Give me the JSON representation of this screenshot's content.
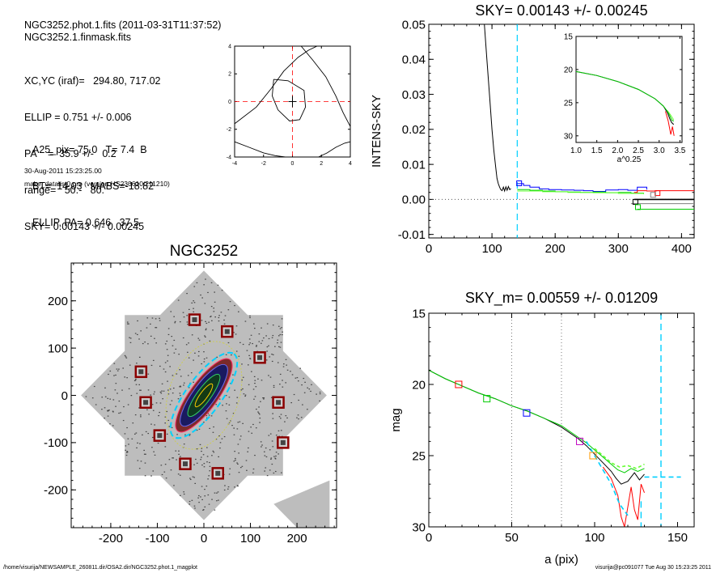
{
  "header": {
    "lines_a": [
      "NGC3252.phot.1.fits  (2011-03-31T11:37:52)",
      "NGC3252.1.finmask.fits"
    ],
    "lines_b": [
      "XC,YC (iraf)=   294.80, 717.02",
      "ELLIP = 0.751 +/- 0.006",
      "PA    =  35.9 +/-   0.2",
      "range=   50.-   80.",
      "SKY= 0.00143 +/- 0.00245"
    ],
    "lines_c": [
      "A25_pix= 75.0   T= 7.4  B",
      "BT=  14.03   MABS=-18.82",
      "ELLIP, PA= 0.646   37.5"
    ],
    "date": "30-Aug-2011 15:23:25.00",
    "program": "make_datalist0.pro (version HS230610/211210)"
  },
  "footer": {
    "path": "/home/visurija/NEWSAMPLE_260811.dir/OSA2.dir/NGC3252.phot.1_magplot",
    "user": "visurija@pc091077  Tue Aug 30 15:23:25 2011"
  },
  "colors": {
    "black": "#000000",
    "red": "#ff0000",
    "green": "#00cc00",
    "blue": "#0000ff",
    "cyan": "#00d0ff",
    "magenta": "#c000c0",
    "orange": "#ff9900",
    "lime": "#66ff33",
    "gray": "#808080",
    "darkred": "#800000"
  },
  "chart_data": [
    {
      "id": "centre-contour",
      "type": "line",
      "title": "",
      "xlim": [
        -4,
        4
      ],
      "ylim": [
        -4,
        4
      ],
      "xticks": [
        "-4",
        "-2",
        "0",
        "2",
        "4"
      ],
      "yticks": [
        "-4",
        "-2",
        "0",
        "2",
        "4"
      ],
      "series": [
        {
          "x": [
            -1.3,
            -0.3,
            0.8,
            0.9,
            0.5,
            -0.2,
            -1.0,
            -1.4,
            -1.3
          ],
          "y": [
            1.6,
            1.5,
            0.8,
            -0.4,
            -1.3,
            -1.4,
            -0.6,
            0.4,
            1.6
          ]
        },
        {
          "x": [
            -4.0,
            -2.5,
            -1.5,
            -0.6,
            0.4,
            1.1,
            1.7,
            2.0
          ],
          "y": [
            -1.6,
            -0.4,
            0.9,
            2.2,
            3.2,
            3.7,
            4.0,
            4.0
          ]
        },
        {
          "x": [
            0.6,
            1.4,
            2.3,
            3.0,
            3.5,
            4.0
          ],
          "y": [
            4.0,
            3.0,
            1.8,
            0.4,
            -0.8,
            -1.8
          ]
        },
        {
          "x": [
            -4.0,
            -3.0,
            -2.0,
            -1.2,
            -0.5
          ],
          "y": [
            -2.9,
            -3.3,
            -3.7,
            -3.9,
            -4.0
          ]
        },
        {
          "x": [
            1.8,
            2.4,
            3.0,
            3.6,
            4.0
          ],
          "y": [
            -4.0,
            -3.7,
            -3.3,
            -3.0,
            -2.9
          ]
        }
      ]
    },
    {
      "id": "sky-profile",
      "type": "line",
      "title": "SKY= 0.00143 +/- 0.00245",
      "xlabel": "",
      "ylabel": "INTENS-SKY",
      "xlim": [
        0,
        420
      ],
      "ylim": [
        -0.011,
        0.05
      ],
      "xticks": [
        "0",
        "100",
        "200",
        "300",
        "400"
      ],
      "yticks": [
        "-0.01",
        "0.00",
        "0.01",
        "0.02",
        "0.03",
        "0.04",
        "0.05"
      ],
      "series": [
        {
          "color": "black",
          "x": [
            88,
            92,
            96,
            100,
            103,
            106,
            108,
            110,
            112,
            114,
            116,
            118,
            120,
            122,
            124,
            126,
            128,
            130
          ],
          "y": [
            0.05,
            0.04,
            0.03,
            0.02,
            0.014,
            0.009,
            0.006,
            0.0045,
            0.0035,
            0.0028,
            0.0025,
            0.0035,
            0.0024,
            0.0036,
            0.0026,
            0.0037,
            0.0028,
            0.0031
          ]
        },
        {
          "color": "blue",
          "x": [
            140,
            150,
            160,
            175,
            190,
            210,
            230,
            245,
            260,
            280,
            300,
            315,
            330,
            345
          ],
          "y": [
            0.0045,
            0.004,
            0.0035,
            0.003,
            0.0028,
            0.0027,
            0.0026,
            0.0025,
            0.0023,
            0.0027,
            0.0028,
            0.0026,
            0.0035,
            0.0028
          ]
        },
        {
          "color": "green",
          "x": [
            140,
            160,
            180,
            200,
            220,
            240,
            260,
            280,
            300,
            320,
            340
          ],
          "y": [
            0.0028,
            0.0026,
            0.0024,
            0.0022,
            0.0021,
            0.002,
            0.0021,
            0.0019,
            0.002,
            0.0018,
            0.0017
          ]
        },
        {
          "color": "lime",
          "x": [
            140,
            180,
            220,
            260,
            300,
            340
          ],
          "y": [
            0.0024,
            0.0022,
            0.002,
            0.0019,
            0.0017,
            0.0015
          ]
        },
        {
          "color": "red",
          "x": [
            325,
            330,
            345,
            360,
            380,
            420
          ],
          "y": [
            0.002,
            0.0025,
            0.0024,
            0.0025,
            0.0025,
            0.0025
          ]
        },
        {
          "color": "black",
          "x": [
            325,
            420
          ],
          "y": [
            0.0,
            0.0
          ]
        },
        {
          "color": "green",
          "x": [
            330,
            420
          ],
          "y": [
            -0.0028,
            -0.0028
          ]
        },
        {
          "color": "gray",
          "x": [
            320,
            420
          ],
          "y": [
            -0.0012,
            -0.0012
          ]
        }
      ],
      "markers": [
        {
          "color": "blue",
          "x": [
            143
          ],
          "y": [
            0.0046
          ]
        },
        {
          "color": "red",
          "x": [
            362
          ],
          "y": [
            0.0018
          ]
        },
        {
          "color": "gray",
          "x": [
            355
          ],
          "y": [
            0.0013
          ]
        },
        {
          "color": "black",
          "x": [
            327
          ],
          "y": [
            -0.0007
          ]
        },
        {
          "color": "green",
          "x": [
            331
          ],
          "y": [
            -0.0022
          ]
        }
      ],
      "vlines": [
        {
          "color": "cyan",
          "x": 140
        }
      ],
      "hlines": [
        {
          "color": "gray",
          "y": 0
        }
      ]
    },
    {
      "id": "sky-inset",
      "type": "line",
      "title": "",
      "xlabel": "a^0.25",
      "xlim": [
        1.0,
        3.55
      ],
      "ylim": [
        31,
        15
      ],
      "xticks": [
        "1.0",
        "1.5",
        "2.0",
        "2.5",
        "3.0",
        "3.5"
      ],
      "yticks": [
        "15",
        "20",
        "25",
        "30"
      ],
      "series": [
        {
          "color": "black",
          "x": [
            1.0,
            1.5,
            2.0,
            2.5,
            2.9,
            3.1,
            3.2,
            3.26,
            3.3,
            3.35
          ],
          "y": [
            20.3,
            20.9,
            21.8,
            23.0,
            24.4,
            25.5,
            26.5,
            27.5,
            28.0,
            28.3
          ]
        },
        {
          "color": "green",
          "x": [
            1.0,
            1.5,
            2.0,
            2.5,
            2.9,
            3.1,
            3.2,
            3.26,
            3.3,
            3.35
          ],
          "y": [
            20.3,
            20.9,
            21.8,
            23.0,
            24.4,
            25.5,
            26.3,
            27.0,
            27.6,
            27.8
          ]
        },
        {
          "color": "red",
          "x": [
            3.15,
            3.22,
            3.28,
            3.32,
            3.36
          ],
          "y": [
            26.3,
            27.8,
            29.8,
            28.6,
            30.0
          ]
        },
        {
          "color": "lime",
          "x": [
            3.2,
            3.28,
            3.35
          ],
          "y": [
            26.2,
            26.9,
            27.6
          ]
        }
      ]
    },
    {
      "id": "galaxy-image",
      "type": "scatter",
      "title": "NGC3252",
      "xlim": [
        -285,
        285
      ],
      "ylim": [
        -280,
        280
      ],
      "xticks": [
        "-200",
        "-100",
        "0",
        "100",
        "200"
      ],
      "yticks": [
        "-200",
        "-100",
        "0",
        "100",
        "200"
      ],
      "masks": [
        [
          -20,
          160
        ],
        [
          50,
          135
        ],
        [
          120,
          80
        ],
        [
          -135,
          50
        ],
        [
          -125,
          -15
        ],
        [
          160,
          -15
        ],
        [
          -95,
          -85
        ],
        [
          170,
          -100
        ],
        [
          -40,
          -145
        ],
        [
          30,
          -165
        ]
      ]
    },
    {
      "id": "mag-profile",
      "type": "line",
      "title": "SKY_m=  0.00559 +/- 0.01209",
      "xlabel": "a (pix)",
      "ylabel": "mag",
      "xlim": [
        0,
        160
      ],
      "ylim": [
        30,
        15
      ],
      "xticks": [
        "0",
        "50",
        "100",
        "150"
      ],
      "yticks": [
        "15",
        "20",
        "25",
        "30"
      ],
      "series": [
        {
          "color": "black",
          "x": [
            0,
            10,
            20,
            30,
            40,
            50,
            60,
            70,
            80,
            90,
            95,
            100,
            105,
            110,
            113,
            116,
            120,
            124,
            127,
            130
          ],
          "y": [
            19.0,
            19.6,
            20.1,
            20.6,
            21.0,
            21.5,
            21.9,
            22.4,
            23.0,
            23.8,
            24.3,
            24.9,
            25.5,
            26.1,
            26.6,
            27.0,
            26.8,
            26.2,
            26.7,
            26.3
          ]
        },
        {
          "color": "green",
          "x": [
            0,
            10,
            20,
            30,
            40,
            50,
            60,
            70,
            80,
            90,
            95,
            100,
            105,
            110,
            114,
            118,
            122,
            126,
            130
          ],
          "y": [
            19.0,
            19.6,
            20.1,
            20.6,
            21.0,
            21.5,
            21.9,
            22.4,
            22.9,
            23.7,
            24.1,
            24.6,
            25.1,
            25.6,
            26.0,
            26.2,
            25.9,
            26.1,
            25.9
          ]
        },
        {
          "color": "lime",
          "x": [
            100,
            105,
            110,
            115,
            120,
            125,
            130
          ],
          "y": [
            24.5,
            25.0,
            25.5,
            25.8,
            25.7,
            25.9,
            25.6
          ]
        },
        {
          "color": "red",
          "x": [
            105,
            110,
            114,
            116,
            118,
            120,
            122,
            124,
            126,
            128,
            130
          ],
          "y": [
            25.8,
            26.6,
            27.8,
            29.3,
            30.0,
            28.6,
            27.2,
            28.8,
            29.5,
            27.0,
            27.6
          ]
        },
        {
          "color": "cyan",
          "x": [
            95,
            100,
            105,
            110,
            115,
            120
          ],
          "y": [
            24.0,
            25.0,
            26.0,
            27.0,
            28.4,
            29.2
          ]
        },
        {
          "color": "cyan",
          "x": [
            130,
            140,
            145,
            152
          ],
          "y": [
            26.5,
            26.5,
            26.5,
            26.5
          ]
        }
      ],
      "markers": [
        {
          "color": "red",
          "x": [
            18
          ],
          "y": [
            20.0
          ]
        },
        {
          "color": "green",
          "x": [
            35
          ],
          "y": [
            21.0
          ]
        },
        {
          "color": "blue",
          "x": [
            59
          ],
          "y": [
            22.0
          ]
        },
        {
          "color": "magenta",
          "x": [
            91
          ],
          "y": [
            24.0
          ]
        },
        {
          "color": "orange",
          "x": [
            99
          ],
          "y": [
            25.0
          ]
        }
      ],
      "vlines": [
        {
          "color": "gray",
          "x": 50
        },
        {
          "color": "gray",
          "x": 80
        },
        {
          "color": "cyan",
          "x": 140
        },
        {
          "color": "cyan",
          "x": 128
        }
      ]
    }
  ]
}
